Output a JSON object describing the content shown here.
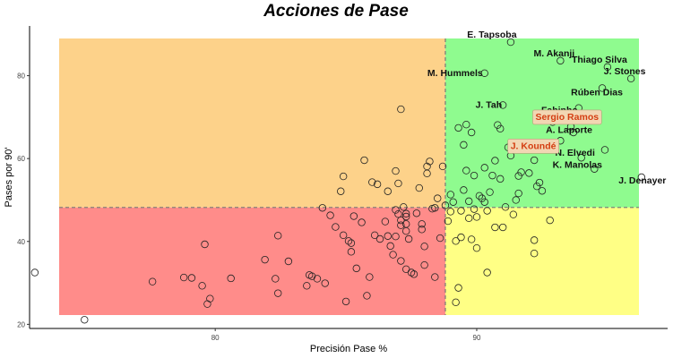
{
  "chart_data": {
    "type": "scatter",
    "title": "Acciones de Pase",
    "xlabel": "Precisión Pase %",
    "ylabel": "Pases por 90'",
    "xlim": [
      72.9,
      97.3
    ],
    "ylim": [
      19,
      92
    ],
    "x_ticks": [
      80,
      90
    ],
    "y_ticks": [
      20,
      40,
      60,
      80
    ],
    "grid": false,
    "threshold": {
      "x": 88.8,
      "y": 48.2
    },
    "quadrants": [
      {
        "name": "top-left",
        "color": "#FDD28A"
      },
      {
        "name": "top-right",
        "color": "#8FFB8F"
      },
      {
        "name": "bottom-left",
        "color": "#FF8C8A"
      },
      {
        "name": "bottom-right",
        "color": "#FFFF85"
      }
    ],
    "colors": {
      "point_stroke": "#222222",
      "highlight": "#D43E12",
      "label_box": "#F2D6B3",
      "divider": "#777777"
    },
    "labeled_points": [
      {
        "label": "E. Tapsoba",
        "x": 91.3,
        "y": 88.1
      },
      {
        "label": "M. Akanji",
        "x": 93.2,
        "y": 83.6
      },
      {
        "label": "Thiago Silva",
        "x": 95.0,
        "y": 82.1
      },
      {
        "label": "J. Stones",
        "x": 95.9,
        "y": 79.3
      },
      {
        "label": "M. Hummels",
        "x": 90.3,
        "y": 80.6
      },
      {
        "label": "Rúben Dias",
        "x": 94.8,
        "y": 77.0
      },
      {
        "label": "J. Tah",
        "x": 91.0,
        "y": 72.9
      },
      {
        "label": "Fabinho",
        "x": 93.9,
        "y": 72.2
      },
      {
        "label": "A. Laporte",
        "x": 93.6,
        "y": 67.7
      },
      {
        "label": "N. Elvedi",
        "x": 94.0,
        "y": 60.2
      },
      {
        "label": "K. Manolas",
        "x": 94.5,
        "y": 57.5
      },
      {
        "label": "J. Denayer",
        "x": 96.3,
        "y": 55.5
      }
    ],
    "highlighted_points": [
      {
        "label": "Sergio Ramos",
        "x": 93.9,
        "y": 70.2
      },
      {
        "label": "J. Koundé",
        "x": 92.3,
        "y": 63.2
      }
    ],
    "other_points": [
      [
        73.1,
        32.5
      ],
      [
        75.0,
        21.1
      ],
      [
        77.6,
        30.3
      ],
      [
        78.8,
        31.3
      ],
      [
        79.1,
        31.2
      ],
      [
        79.5,
        29.3
      ],
      [
        79.6,
        39.3
      ],
      [
        79.7,
        24.9
      ],
      [
        79.8,
        26.2
      ],
      [
        80.6,
        31.1
      ],
      [
        81.9,
        35.6
      ],
      [
        82.3,
        31.0
      ],
      [
        82.4,
        27.5
      ],
      [
        82.4,
        41.4
      ],
      [
        82.8,
        35.2
      ],
      [
        83.5,
        29.3
      ],
      [
        83.6,
        31.9
      ],
      [
        83.7,
        31.6
      ],
      [
        83.9,
        31.0
      ],
      [
        84.1,
        48.1
      ],
      [
        84.2,
        29.9
      ],
      [
        84.4,
        46.3
      ],
      [
        84.6,
        43.5
      ],
      [
        84.8,
        52.1
      ],
      [
        84.9,
        55.7
      ],
      [
        84.9,
        41.5
      ],
      [
        85.0,
        25.5
      ],
      [
        85.1,
        40.1
      ],
      [
        85.2,
        39.6
      ],
      [
        85.2,
        37.5
      ],
      [
        85.3,
        46.1
      ],
      [
        85.4,
        33.5
      ],
      [
        85.6,
        44.6
      ],
      [
        85.7,
        59.6
      ],
      [
        85.8,
        26.9
      ],
      [
        85.9,
        31.4
      ],
      [
        86.0,
        54.3
      ],
      [
        86.1,
        41.5
      ],
      [
        86.2,
        53.8
      ],
      [
        86.3,
        40.6
      ],
      [
        86.5,
        44.8
      ],
      [
        86.6,
        52.1
      ],
      [
        86.6,
        41.3
      ],
      [
        86.7,
        38.9
      ],
      [
        86.8,
        36.8
      ],
      [
        86.9,
        47.6
      ],
      [
        86.9,
        41.2
      ],
      [
        86.9,
        57.0
      ],
      [
        87.0,
        46.6
      ],
      [
        87.0,
        54.0
      ],
      [
        87.1,
        45.1
      ],
      [
        87.1,
        43.9
      ],
      [
        87.1,
        35.3
      ],
      [
        87.1,
        71.9
      ],
      [
        87.2,
        48.3
      ],
      [
        87.3,
        46.7
      ],
      [
        87.3,
        46.0
      ],
      [
        87.3,
        44.2
      ],
      [
        87.3,
        42.5
      ],
      [
        87.3,
        33.3
      ],
      [
        87.4,
        40.6
      ],
      [
        87.5,
        32.5
      ],
      [
        87.6,
        32.1
      ],
      [
        87.7,
        46.8
      ],
      [
        87.8,
        52.9
      ],
      [
        87.9,
        44.2
      ],
      [
        87.9,
        42.9
      ],
      [
        88.0,
        38.8
      ],
      [
        88.0,
        34.3
      ],
      [
        88.1,
        58.1
      ],
      [
        88.1,
        56.4
      ],
      [
        88.2,
        59.3
      ],
      [
        88.3,
        47.9
      ],
      [
        88.4,
        48.1
      ],
      [
        88.4,
        31.4
      ],
      [
        88.5,
        50.4
      ],
      [
        88.6,
        40.8
      ],
      [
        88.7,
        58.1
      ],
      [
        88.8,
        48.7
      ],
      [
        88.9,
        44.9
      ],
      [
        89.0,
        51.3
      ],
      [
        89.0,
        47.2
      ],
      [
        89.1,
        49.5
      ],
      [
        89.2,
        40.1
      ],
      [
        89.2,
        25.3
      ],
      [
        89.3,
        28.8
      ],
      [
        89.3,
        67.4
      ],
      [
        89.4,
        47.4
      ],
      [
        89.4,
        41.0
      ],
      [
        89.5,
        52.4
      ],
      [
        89.5,
        63.3
      ],
      [
        89.6,
        68.2
      ],
      [
        89.6,
        57.1
      ],
      [
        89.7,
        49.7
      ],
      [
        89.7,
        45.6
      ],
      [
        89.8,
        66.3
      ],
      [
        89.8,
        40.5
      ],
      [
        89.9,
        55.9
      ],
      [
        89.9,
        47.8
      ],
      [
        90.0,
        38.4
      ],
      [
        90.0,
        45.9
      ],
      [
        90.1,
        51.0
      ],
      [
        90.2,
        50.4
      ],
      [
        90.3,
        49.5
      ],
      [
        90.3,
        57.8
      ],
      [
        90.4,
        47.4
      ],
      [
        90.4,
        32.5
      ],
      [
        90.5,
        51.9
      ],
      [
        90.6,
        55.9
      ],
      [
        90.7,
        43.4
      ],
      [
        90.7,
        59.5
      ],
      [
        90.8,
        68.1
      ],
      [
        90.9,
        67.2
      ],
      [
        90.9,
        55.1
      ],
      [
        91.0,
        43.4
      ],
      [
        91.1,
        48.3
      ],
      [
        91.2,
        62.7
      ],
      [
        91.3,
        60.7
      ],
      [
        91.4,
        46.5
      ],
      [
        91.5,
        50.0
      ],
      [
        91.6,
        55.8
      ],
      [
        91.6,
        51.6
      ],
      [
        91.7,
        56.7
      ],
      [
        92.0,
        56.5
      ],
      [
        92.2,
        59.6
      ],
      [
        92.2,
        40.3
      ],
      [
        92.2,
        37.1
      ],
      [
        92.3,
        53.3
      ],
      [
        92.4,
        54.2
      ],
      [
        92.5,
        52.2
      ],
      [
        92.8,
        45.1
      ],
      [
        92.9,
        68.8
      ],
      [
        93.2,
        64.3
      ],
      [
        93.7,
        66.3
      ],
      [
        94.5,
        70.0
      ],
      [
        94.9,
        62.1
      ]
    ]
  }
}
